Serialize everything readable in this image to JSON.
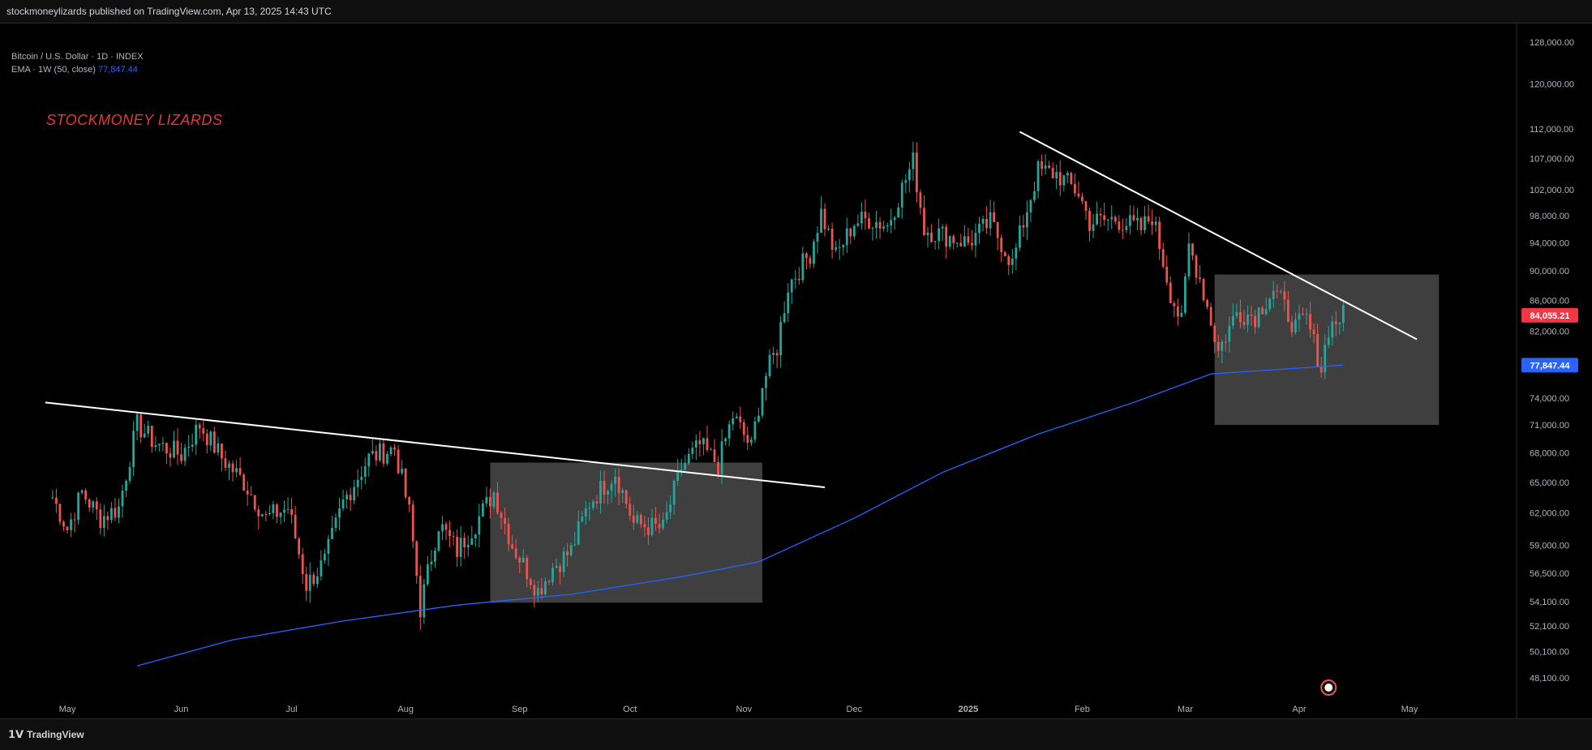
{
  "header": {
    "publish_line": "stockmoneylizards published on TradingView.com, Apr 13, 2025 14:43 UTC"
  },
  "legend": {
    "symbol_line": "Bitcoin / U.S. Dollar · 1D · INDEX",
    "ema_label": "EMA · 1W (50, close)",
    "ema_value": "77,847.44"
  },
  "watermark": {
    "text": "STOCKMONEY LIZARDS"
  },
  "footer": {
    "brand": "TradingView",
    "brand_icon": "tv-logo-icon"
  },
  "colors": {
    "up": "#26a69a",
    "down": "#ef5350",
    "ema": "#2962ff",
    "price_badge": "#f23645",
    "ema_badge": "#2962ff",
    "trendline": "#ffffff",
    "zone": "#4a4a4a"
  },
  "chart_data": {
    "type": "candlestick",
    "title": "Bitcoin / U.S. Dollar · 1D · INDEX",
    "y_scale": "log",
    "y_ticks": [
      128000,
      120000,
      112000,
      107000,
      102000,
      98000,
      94000,
      90000,
      86000,
      82000,
      78000,
      74000,
      71000,
      68000,
      65000,
      62000,
      59000,
      56500,
      54100,
      52100,
      50100,
      48100
    ],
    "y_tick_labels": [
      "128,000.00",
      "120,000.00",
      "112,000.00",
      "107,000.00",
      "102,000.00",
      "98,000.00",
      "94,000.00",
      "90,000.00",
      "86,000.00",
      "82,000.00",
      "78,000.00",
      "74,000.00",
      "71,000.00",
      "68,000.00",
      "65,000.00",
      "62,000.00",
      "59,000.00",
      "56,500.00",
      "54,100.00",
      "52,100.00",
      "50,100.00",
      "48,100.00"
    ],
    "x_tick_labels": [
      "May",
      "Jun",
      "Jul",
      "Aug",
      "Sep",
      "Oct",
      "Nov",
      "Dec",
      "2025",
      "Feb",
      "Mar",
      "Apr",
      "May"
    ],
    "x_tick_dates": [
      "2024-05-01",
      "2024-06-01",
      "2024-07-01",
      "2024-08-01",
      "2024-09-01",
      "2024-10-01",
      "2024-11-01",
      "2024-12-01",
      "2025-01-01",
      "2025-02-01",
      "2025-03-01",
      "2025-04-01",
      "2025-05-01"
    ],
    "price_path": [
      [
        "2024-04-27",
        63500
      ],
      [
        "2024-05-01",
        60500
      ],
      [
        "2024-05-05",
        64000
      ],
      [
        "2024-05-10",
        61500
      ],
      [
        "2024-05-15",
        62500
      ],
      [
        "2024-05-20",
        71000
      ],
      [
        "2024-05-25",
        69000
      ],
      [
        "2024-06-01",
        67800
      ],
      [
        "2024-06-06",
        71000
      ],
      [
        "2024-06-12",
        67500
      ],
      [
        "2024-06-18",
        65000
      ],
      [
        "2024-06-24",
        61500
      ],
      [
        "2024-06-30",
        62500
      ],
      [
        "2024-07-05",
        55500
      ],
      [
        "2024-07-10",
        57500
      ],
      [
        "2024-07-15",
        63000
      ],
      [
        "2024-07-22",
        67500
      ],
      [
        "2024-07-29",
        68500
      ],
      [
        "2024-08-02",
        62000
      ],
      [
        "2024-08-05",
        53500
      ],
      [
        "2024-08-10",
        61000
      ],
      [
        "2024-08-15",
        58500
      ],
      [
        "2024-08-20",
        61000
      ],
      [
        "2024-08-25",
        64000
      ],
      [
        "2024-08-30",
        59000
      ],
      [
        "2024-09-06",
        55000
      ],
      [
        "2024-09-10",
        57000
      ],
      [
        "2024-09-15",
        58500
      ],
      [
        "2024-09-20",
        63000
      ],
      [
        "2024-09-27",
        66000
      ],
      [
        "2024-10-02",
        61000
      ],
      [
        "2024-10-10",
        60500
      ],
      [
        "2024-10-15",
        66500
      ],
      [
        "2024-10-20",
        68800
      ],
      [
        "2024-10-25",
        66800
      ],
      [
        "2024-10-29",
        72000
      ],
      [
        "2024-11-03",
        68500
      ],
      [
        "2024-11-06",
        75500
      ],
      [
        "2024-11-10",
        80000
      ],
      [
        "2024-11-13",
        88000
      ],
      [
        "2024-11-19",
        92500
      ],
      [
        "2024-11-22",
        98500
      ],
      [
        "2024-11-26",
        92000
      ],
      [
        "2024-12-01",
        97000
      ],
      [
        "2024-12-05",
        97500
      ],
      [
        "2024-12-10",
        96500
      ],
      [
        "2024-12-17",
        106500
      ],
      [
        "2024-12-20",
        96000
      ],
      [
        "2024-12-26",
        95000
      ],
      [
        "2025-01-01",
        94000
      ],
      [
        "2025-01-07",
        97000
      ],
      [
        "2025-01-13",
        91000
      ],
      [
        "2025-01-20",
        105000
      ],
      [
        "2025-01-25",
        104500
      ],
      [
        "2025-01-31",
        101500
      ],
      [
        "2025-02-03",
        97000
      ],
      [
        "2025-02-10",
        97500
      ],
      [
        "2025-02-17",
        96000
      ],
      [
        "2025-02-20",
        98000
      ],
      [
        "2025-02-25",
        87000
      ],
      [
        "2025-02-28",
        83000
      ],
      [
        "2025-03-02",
        93500
      ],
      [
        "2025-03-05",
        89000
      ],
      [
        "2025-03-10",
        79500
      ],
      [
        "2025-03-15",
        84500
      ],
      [
        "2025-03-20",
        84000
      ],
      [
        "2025-03-25",
        87500
      ],
      [
        "2025-03-31",
        82500
      ],
      [
        "2025-04-03",
        83500
      ],
      [
        "2025-04-07",
        77500
      ],
      [
        "2025-04-09",
        82500
      ],
      [
        "2025-04-13",
        84055
      ]
    ],
    "ema_path": [
      [
        "2024-05-20",
        49000
      ],
      [
        "2024-06-15",
        51000
      ],
      [
        "2024-07-15",
        52500
      ],
      [
        "2024-08-15",
        53800
      ],
      [
        "2024-09-15",
        54700
      ],
      [
        "2024-10-15",
        56200
      ],
      [
        "2024-11-05",
        57500
      ],
      [
        "2024-12-01",
        61500
      ],
      [
        "2024-12-25",
        66000
      ],
      [
        "2025-01-20",
        70000
      ],
      [
        "2025-02-15",
        73500
      ],
      [
        "2025-03-08",
        76800
      ],
      [
        "2025-04-13",
        77847
      ]
    ],
    "trendlines": [
      {
        "from": [
          "2024-04-25",
          73500
        ],
        "to": [
          "2024-11-23",
          64500
        ]
      },
      {
        "from": [
          "2025-01-15",
          111500
        ],
        "to": [
          "2025-05-03",
          81000
        ]
      }
    ],
    "zones": [
      {
        "from": "2024-08-24",
        "to": "2024-11-06",
        "high": 67000,
        "low": 54000
      },
      {
        "from": "2025-03-09",
        "to": "2025-05-09",
        "high": 89500,
        "low": 71000
      }
    ],
    "last_price": {
      "value": 84055.21,
      "label": "84,055.21"
    },
    "ema_last": {
      "value": 77847.44,
      "label": "77,847.44"
    }
  }
}
